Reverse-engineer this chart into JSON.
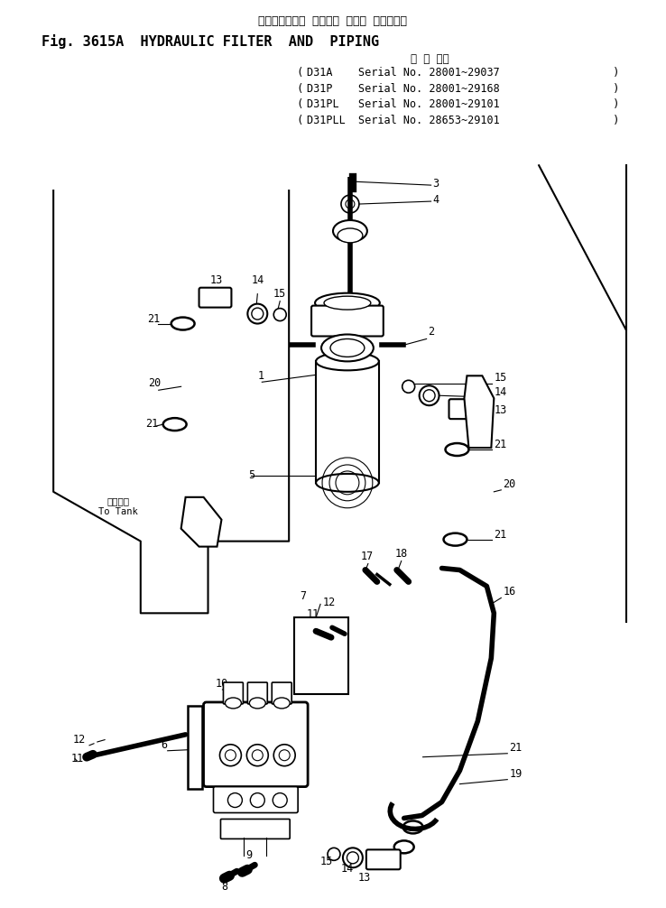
{
  "title_japanese": "ハイドロリック フィルタ および パイピング",
  "title_english": "Fig. 3615A  HYDRAULIC FILTER  AND  PIPING",
  "applicable_header": "適 用 号機",
  "model_lines": [
    "D31A    Serial No. 28001~29037",
    "D31P    Serial No. 28001~29168",
    "D31PL   Serial No. 28001~29101",
    "D31PLL  Serial No. 28653~29101"
  ],
  "to_tank_jp": "タンクへ",
  "to_tank_en": "To Tank",
  "bg_color": "#ffffff",
  "line_color": "#000000",
  "text_color": "#000000",
  "fig_width": 7.38,
  "fig_height": 10.06
}
